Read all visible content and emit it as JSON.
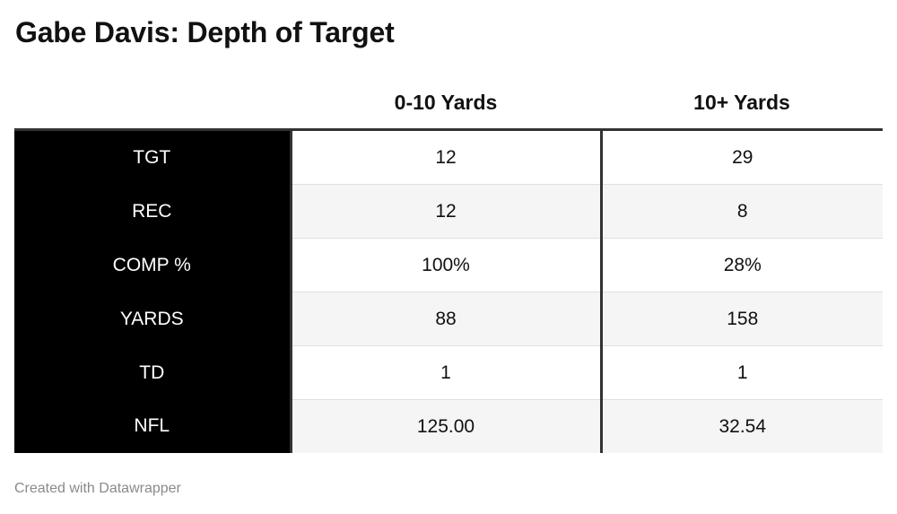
{
  "title": "Gabe Davis: Depth of Target",
  "footer": "Created with Datawrapper",
  "chart_data": {
    "type": "table",
    "title": "Gabe Davis: Depth of Target",
    "columns": [
      "",
      "0-10 Yards",
      "10+ Yards"
    ],
    "rows": [
      [
        "TGT",
        "12",
        "29"
      ],
      [
        "REC",
        "12",
        "8"
      ],
      [
        "COMP %",
        "100%",
        "28%"
      ],
      [
        "YARDS",
        "88",
        "158"
      ],
      [
        "TD",
        "1",
        "1"
      ],
      [
        "NFL",
        "125.00",
        "32.54"
      ]
    ]
  },
  "colors": {
    "stub_background": "#000000",
    "stub_text": "#ffffff",
    "stripe": "#f5f5f5",
    "rule": "#333333",
    "footer_text": "#8a8a8a"
  }
}
